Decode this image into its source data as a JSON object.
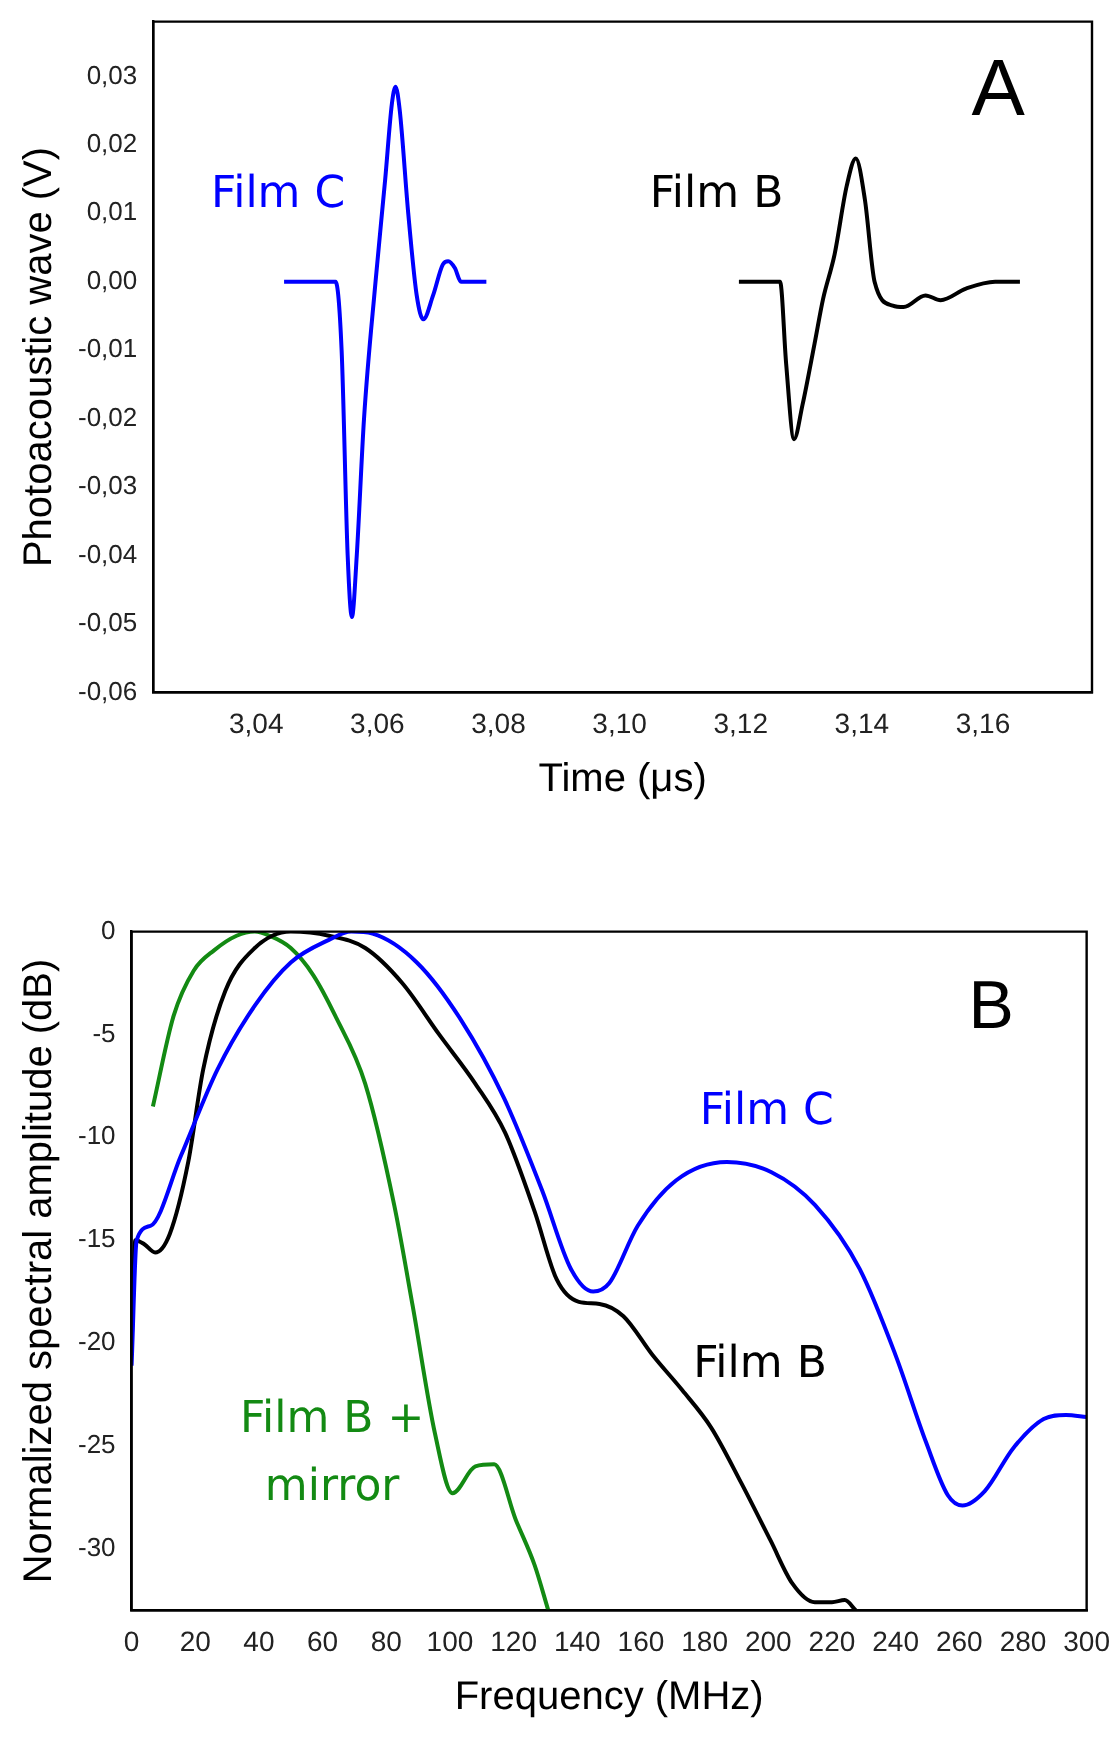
{
  "chart_data": [
    {
      "type": "line",
      "title": "A",
      "xlabel": "Time (μs)",
      "ylabel": "Photoacoustic wave (V)",
      "xlim": [
        3.023,
        3.178
      ],
      "ylim": [
        -0.06,
        0.038
      ],
      "xticks": [
        {
          "value": 3.04,
          "label": "3,04"
        },
        {
          "value": 3.06,
          "label": "3,06"
        },
        {
          "value": 3.08,
          "label": "3,08"
        },
        {
          "value": 3.1,
          "label": "3,10"
        },
        {
          "value": 3.12,
          "label": "3,12"
        },
        {
          "value": 3.14,
          "label": "3,14"
        },
        {
          "value": 3.16,
          "label": "3,16"
        }
      ],
      "yticks": [
        {
          "value": 0.03,
          "label": "0,03"
        },
        {
          "value": 0.02,
          "label": "0,02"
        },
        {
          "value": 0.01,
          "label": "0,01"
        },
        {
          "value": 0,
          "label": "0,00"
        },
        {
          "value": -0.01,
          "label": "-0,01"
        },
        {
          "value": -0.02,
          "label": "-0,02"
        },
        {
          "value": -0.03,
          "label": "-0,03"
        },
        {
          "value": -0.04,
          "label": "-0,04"
        },
        {
          "value": -0.05,
          "label": "-0,05"
        },
        {
          "value": -0.06,
          "label": "-0,06"
        }
      ],
      "grid": false,
      "legend": false,
      "marker": "none",
      "line_style": "solid",
      "series": [
        {
          "name": "Film C",
          "color": "#0000ff",
          "x": [
            3.0446,
            3.0531,
            3.0541,
            3.0551,
            3.0558,
            3.0566,
            3.0578,
            3.0597,
            3.0613,
            3.0624,
            3.063,
            3.0637,
            3.0651,
            3.0665,
            3.0676,
            3.0692,
            3.0708,
            3.0717,
            3.0728,
            3.0738,
            3.078
          ],
          "values": [
            0,
            0,
            -0.01,
            -0.04,
            -0.049,
            -0.04,
            -0.02,
            0,
            0.015,
            0.026,
            0.0285,
            0.025,
            0.01,
            -0.002,
            -0.0055,
            -0.002,
            0.0025,
            0.003,
            0.002,
            0,
            0
          ]
        },
        {
          "name": "Film B",
          "color": "#000000",
          "x": [
            3.1197,
            3.1265,
            3.1275,
            3.1288,
            3.1302,
            3.1322,
            3.1336,
            3.1355,
            3.1375,
            3.139,
            3.1405,
            3.1421,
            3.1451,
            3.1469,
            3.1505,
            3.153,
            3.1572,
            3.162,
            3.1661
          ],
          "values": [
            0,
            0,
            -0.012,
            -0.023,
            -0.018,
            -0.009,
            -0.0025,
            0.004,
            0.014,
            0.018,
            0.012,
            0.0,
            -0.0035,
            -0.0037,
            -0.002,
            -0.0027,
            -0.001,
            0,
            0
          ]
        }
      ]
    },
    {
      "type": "line",
      "title": "B",
      "xlabel": "Frequency (MHz)",
      "ylabel": "Normalized spectral amplitude (dB)",
      "xlim": [
        0,
        300
      ],
      "ylim": [
        -33,
        0
      ],
      "xticks": [
        0,
        20,
        40,
        60,
        80,
        100,
        120,
        140,
        160,
        180,
        200,
        220,
        240,
        260,
        280,
        300
      ],
      "yticks": [
        0,
        -5,
        -10,
        -15,
        -20,
        -25,
        -30
      ],
      "grid": false,
      "legend": false,
      "marker": "none",
      "line_style": "solid",
      "series": [
        {
          "name": "Film C",
          "color": "#0000ff",
          "x": [
            0,
            1.6,
            6,
            15.5,
            27,
            38.7,
            50,
            62,
            69,
            75.7,
            89.6,
            103.5,
            117,
            129,
            138,
            145,
            150,
            159,
            171,
            187,
            201,
            214.7,
            228.7,
            240,
            249.5,
            256.4,
            261,
            268,
            277,
            286.5,
            293.5,
            300
          ],
          "values": [
            -21.1,
            -15,
            -14.3,
            -10.9,
            -6.7,
            -3.6,
            -1.5,
            -0.4,
            0,
            -0.1,
            -1.5,
            -4.3,
            -8.1,
            -12.6,
            -16.4,
            -17.5,
            -17.1,
            -14.3,
            -12.1,
            -11.2,
            -11.7,
            -13.3,
            -16.4,
            -20.6,
            -24.8,
            -27.4,
            -27.9,
            -27.2,
            -25.1,
            -23.7,
            -23.5,
            -23.6
          ]
        },
        {
          "name": "Film B",
          "color": "#000000",
          "x": [
            0,
            1.2,
            4,
            7.4,
            12,
            17.8,
            22.5,
            29.4,
            38.7,
            50,
            62,
            73.4,
            85,
            96.6,
            108,
            117.4,
            126.6,
            133.5,
            140.5,
            147,
            154.5,
            163.7,
            173,
            182,
            191.5,
            200.7,
            207.6,
            214.6,
            220,
            224,
            227.5
          ],
          "values": [
            -20.2,
            -15,
            -15.2,
            -15.6,
            -14.7,
            -11.2,
            -6.7,
            -2.9,
            -0.8,
            0,
            -0.2,
            -0.8,
            -2.5,
            -5,
            -7.4,
            -9.8,
            -13.6,
            -16.9,
            -18,
            -18.1,
            -18.7,
            -20.6,
            -22.3,
            -24.1,
            -26.8,
            -29.6,
            -31.7,
            -32.6,
            -32.6,
            -32.5,
            -33
          ]
        },
        {
          "name": "Film B + mirror",
          "color": "#138a13",
          "x": [
            6.7,
            13.2,
            19.5,
            26,
            33,
            38.7,
            43.3,
            50,
            57,
            64,
            73.4,
            82.5,
            88.3,
            95.3,
            100.8,
            108,
            113.9,
            120.7,
            126.6,
            130.9
          ],
          "values": [
            -8.5,
            -4.1,
            -1.9,
            -0.9,
            -0.2,
            0,
            -0.2,
            -0.8,
            -2.1,
            -4.1,
            -7.4,
            -13.3,
            -18.2,
            -24.4,
            -27.3,
            -26,
            -25.9,
            -28.6,
            -30.8,
            -33
          ]
        }
      ]
    }
  ]
}
